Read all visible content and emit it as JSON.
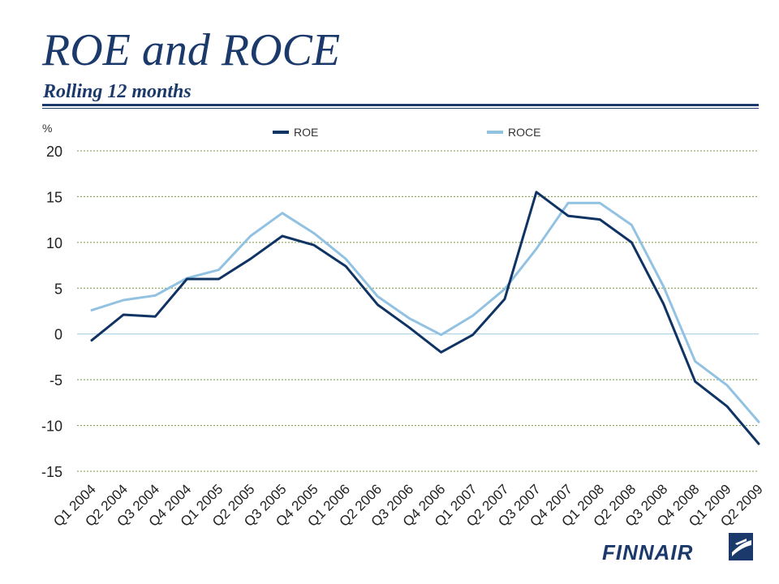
{
  "header": {
    "title": "ROE and ROCE",
    "subtitle": "Rolling 12 months"
  },
  "logo": {
    "text": "FINNAIR",
    "icon": "finnair-logo-icon"
  },
  "colors": {
    "title": "#1b3a6b",
    "roe": "#0f3464",
    "roce": "#92c2e2",
    "grid": "#7a9a3c",
    "zero_line": "#9ec8e4"
  },
  "chart_data": {
    "type": "line",
    "unit_label": "%",
    "categories": [
      "Q1 2004",
      "Q2 2004",
      "Q3 2004",
      "Q4 2004",
      "Q1 2005",
      "Q2 2005",
      "Q3 2005",
      "Q4 2005",
      "Q1 2006",
      "Q2 2006",
      "Q3 2006",
      "Q4 2006",
      "Q1 2007",
      "Q2 2007",
      "Q3 2007",
      "Q4 2007",
      "Q1 2008",
      "Q2 2008",
      "Q3 2008",
      "Q4 2008",
      "Q1 2009",
      "Q2 2009"
    ],
    "series": [
      {
        "name": "ROE",
        "values": [
          -0.7,
          2.1,
          1.9,
          6.0,
          6.0,
          8.2,
          10.7,
          9.7,
          7.4,
          3.2,
          0.7,
          -2.0,
          -0.1,
          3.8,
          15.5,
          12.9,
          12.5,
          10.0,
          3.3,
          -5.2,
          -7.9,
          -12.0
        ]
      },
      {
        "name": "ROCE",
        "values": [
          2.6,
          3.7,
          4.2,
          6.1,
          7.0,
          10.7,
          13.2,
          11.0,
          8.2,
          4.1,
          1.7,
          -0.1,
          2.0,
          4.9,
          9.3,
          14.3,
          14.3,
          11.9,
          5.2,
          -3.0,
          -5.6,
          -9.6
        ]
      }
    ],
    "y_ticks": [
      20,
      15,
      10,
      5,
      0,
      -5,
      -10,
      -15
    ],
    "ylim": [
      -15,
      20
    ],
    "grid": true,
    "legend_position": "top"
  }
}
